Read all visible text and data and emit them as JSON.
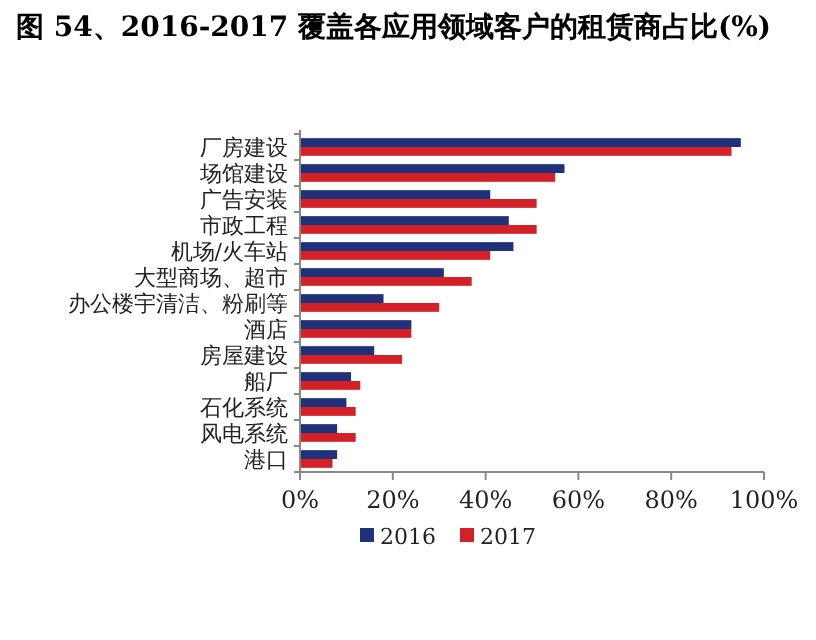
{
  "chart_data": {
    "type": "bar",
    "orientation": "horizontal",
    "title": "图 54、2016-2017 覆盖各应用领域客户的租赁商占比(%)",
    "categories": [
      "厂房建设",
      "场馆建设",
      "广告安装",
      "市政工程",
      "机场/火车站",
      "大型商场、超市",
      "办公楼宇清洁、粉刷等",
      "酒店",
      "房屋建设",
      "船厂",
      "石化系统",
      "风电系统",
      "港口"
    ],
    "series": [
      {
        "name": "2016",
        "color": "#1f3178",
        "values": [
          95,
          57,
          41,
          45,
          46,
          31,
          18,
          24,
          16,
          11,
          10,
          8,
          8
        ]
      },
      {
        "name": "2017",
        "color": "#d42027",
        "values": [
          93,
          55,
          51,
          51,
          41,
          37,
          30,
          24,
          22,
          13,
          12,
          12,
          7
        ]
      }
    ],
    "xlim": [
      0,
      100
    ],
    "xticks": [
      {
        "value": 0,
        "label": "0%"
      },
      {
        "value": 20,
        "label": "20%"
      },
      {
        "value": 40,
        "label": "40%"
      },
      {
        "value": 60,
        "label": "60%"
      },
      {
        "value": 80,
        "label": "80%"
      },
      {
        "value": 100,
        "label": "100%"
      }
    ],
    "grid": false,
    "legend": "bottom"
  }
}
